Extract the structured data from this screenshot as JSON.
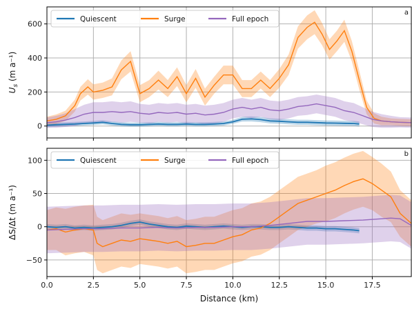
{
  "chart_data": [
    {
      "type": "line",
      "panel_letter": "a",
      "ylabel_main": "U",
      "ylabel_sub": "s",
      "ylabel_unit": " (m a⁻¹)",
      "xlim": [
        0,
        19.6
      ],
      "ylim": [
        -70,
        700
      ],
      "xticks": [
        "0.0",
        "2.5",
        "5.0",
        "7.5",
        "10.0",
        "12.5",
        "15.0",
        "17.5"
      ],
      "yticks": [
        0,
        200,
        400,
        600
      ],
      "ytick_labels": [
        "0",
        "200",
        "400",
        "600"
      ],
      "grid": true,
      "legend": "top-left",
      "series": [
        {
          "name": "Quiescent",
          "color": "#1f77b4",
          "x": [
            0,
            0.5,
            1,
            1.5,
            2,
            2.5,
            3,
            3.5,
            4,
            4.5,
            5,
            5.5,
            6,
            6.5,
            7,
            7.5,
            8,
            8.5,
            9,
            9.5,
            10,
            10.5,
            11,
            11.5,
            12,
            12.5,
            13,
            13.5,
            14,
            14.5,
            15,
            15.5,
            16,
            16.5,
            16.8
          ],
          "y": [
            5,
            8,
            10,
            12,
            15,
            18,
            22,
            15,
            10,
            8,
            8,
            10,
            12,
            10,
            10,
            12,
            10,
            10,
            12,
            15,
            25,
            40,
            42,
            38,
            30,
            28,
            25,
            22,
            22,
            20,
            18,
            17,
            16,
            15,
            12
          ],
          "band": [
            12,
            12,
            12,
            12,
            12,
            12,
            12,
            12,
            12,
            12,
            12,
            12,
            12,
            12,
            12,
            12,
            12,
            12,
            12,
            12,
            12,
            14,
            15,
            15,
            15,
            15,
            15,
            15,
            15,
            15,
            15,
            15,
            15,
            15,
            15
          ]
        },
        {
          "name": "Surge",
          "color": "#ff7f0e",
          "x": [
            0,
            0.5,
            1,
            1.5,
            1.8,
            2.2,
            2.5,
            3,
            3.5,
            4,
            4.5,
            5,
            5.5,
            6,
            6.5,
            7,
            7.5,
            8,
            8.5,
            9,
            9.5,
            10,
            10.5,
            11,
            11.5,
            12,
            12.5,
            13,
            13.5,
            14,
            14.4,
            14.8,
            15.2,
            15.6,
            16,
            16.4,
            16.8,
            17.2,
            17.6,
            18,
            18.5,
            19,
            19.6
          ],
          "y": [
            30,
            40,
            60,
            120,
            190,
            230,
            200,
            210,
            230,
            330,
            380,
            190,
            220,
            270,
            220,
            290,
            190,
            280,
            170,
            240,
            300,
            300,
            220,
            220,
            270,
            220,
            280,
            360,
            520,
            580,
            610,
            540,
            450,
            500,
            560,
            440,
            270,
            110,
            45,
            30,
            25,
            22,
            20
          ],
          "band": [
            25,
            28,
            30,
            35,
            40,
            45,
            45,
            45,
            50,
            55,
            60,
            50,
            50,
            55,
            50,
            55,
            50,
            55,
            50,
            50,
            55,
            55,
            50,
            50,
            50,
            50,
            55,
            60,
            65,
            70,
            70,
            65,
            60,
            60,
            65,
            60,
            55,
            40,
            30,
            25,
            20,
            20,
            20
          ]
        },
        {
          "name": "Full epoch",
          "color": "#9467bd",
          "x": [
            0,
            0.5,
            1,
            1.5,
            2,
            2.5,
            3,
            3.5,
            4,
            4.5,
            5,
            5.5,
            6,
            6.5,
            7,
            7.5,
            8,
            8.5,
            9,
            9.5,
            10,
            10.5,
            11,
            11.5,
            12,
            12.5,
            13,
            13.5,
            14,
            14.5,
            15,
            15.5,
            16,
            16.5,
            17,
            17.5,
            18,
            18.5,
            19,
            19.6
          ],
          "y": [
            20,
            25,
            35,
            50,
            70,
            80,
            80,
            85,
            80,
            85,
            75,
            70,
            80,
            75,
            80,
            70,
            75,
            65,
            70,
            80,
            100,
            110,
            100,
            110,
            95,
            90,
            100,
            115,
            120,
            130,
            120,
            110,
            90,
            80,
            60,
            40,
            30,
            25,
            22,
            20
          ],
          "band": [
            30,
            35,
            40,
            50,
            55,
            60,
            60,
            60,
            60,
            60,
            55,
            55,
            55,
            55,
            55,
            55,
            55,
            55,
            55,
            55,
            55,
            55,
            55,
            55,
            55,
            55,
            55,
            55,
            55,
            55,
            55,
            55,
            55,
            55,
            50,
            45,
            40,
            35,
            30,
            30
          ]
        }
      ]
    },
    {
      "type": "line",
      "panel_letter": "b",
      "ylabel": "ΔS/Δt (m a⁻¹)",
      "xlabel": "Distance (km)",
      "xlim": [
        0,
        19.6
      ],
      "ylim": [
        -75,
        118
      ],
      "xticks": [
        "0.0",
        "2.5",
        "5.0",
        "7.5",
        "10.0",
        "12.5",
        "15.0",
        "17.5"
      ],
      "yticks": [
        -50,
        0,
        50,
        100
      ],
      "ytick_labels": [
        "−50",
        "0",
        "50",
        "100"
      ],
      "grid": true,
      "legend": "top-left",
      "series": [
        {
          "name": "Quiescent",
          "color": "#1f77b4",
          "x": [
            0,
            0.5,
            1,
            1.5,
            2,
            2.5,
            3,
            3.5,
            4,
            4.5,
            5,
            5.5,
            6,
            6.5,
            7,
            7.5,
            8,
            8.5,
            9,
            9.5,
            10,
            10.5,
            11,
            11.5,
            12,
            12.5,
            13,
            13.5,
            14,
            14.5,
            15,
            15.5,
            16,
            16.5,
            16.8
          ],
          "y": [
            0,
            -1,
            0,
            -2,
            -1,
            -2,
            -1,
            0,
            2,
            5,
            7,
            4,
            2,
            0,
            -1,
            1,
            0,
            -1,
            0,
            1,
            0,
            -1,
            0,
            0,
            -1,
            -1,
            0,
            -1,
            -2,
            -2,
            -3,
            -3,
            -4,
            -5,
            -6
          ],
          "band": [
            4,
            4,
            4,
            4,
            4,
            4,
            4,
            4,
            4,
            4,
            4,
            4,
            4,
            4,
            4,
            4,
            4,
            4,
            4,
            4,
            4,
            4,
            4,
            4,
            4,
            4,
            4,
            4,
            4,
            4,
            4,
            4,
            4,
            4,
            4
          ]
        },
        {
          "name": "Surge",
          "color": "#ff7f0e",
          "x": [
            0,
            0.5,
            1,
            1.5,
            2,
            2.5,
            2.7,
            3,
            3.5,
            4,
            4.5,
            5,
            5.5,
            6,
            6.5,
            7,
            7.5,
            8,
            8.5,
            9,
            9.5,
            10,
            10.5,
            11,
            11.5,
            12,
            12.5,
            13,
            13.5,
            14,
            14.5,
            15,
            15.5,
            16,
            16.5,
            17,
            17.5,
            18,
            18.5,
            19,
            19.6
          ],
          "y": [
            -5,
            -3,
            -8,
            -5,
            -3,
            -5,
            -25,
            -30,
            -25,
            -20,
            -22,
            -18,
            -20,
            -22,
            -25,
            -22,
            -30,
            -28,
            -25,
            -25,
            -20,
            -15,
            -12,
            -5,
            -2,
            5,
            15,
            25,
            35,
            40,
            45,
            50,
            55,
            62,
            68,
            72,
            65,
            55,
            45,
            20,
            5
          ],
          "band": [
            30,
            32,
            35,
            35,
            35,
            38,
            40,
            40,
            40,
            40,
            40,
            38,
            38,
            38,
            38,
            38,
            40,
            40,
            40,
            40,
            40,
            40,
            40,
            40,
            40,
            40,
            40,
            40,
            40,
            40,
            40,
            42,
            42,
            42,
            42,
            42,
            40,
            40,
            38,
            35,
            35
          ]
        },
        {
          "name": "Full epoch",
          "color": "#9467bd",
          "x": [
            0,
            1,
            2,
            3,
            4,
            5,
            6,
            7,
            8,
            9,
            10,
            11,
            12,
            13,
            14,
            15,
            16,
            17,
            18,
            18.5,
            19,
            19.6
          ],
          "y": [
            -5,
            -4,
            -3,
            -3,
            -2,
            -2,
            -1,
            -2,
            -1,
            -1,
            0,
            0,
            2,
            5,
            8,
            8,
            9,
            10,
            12,
            13,
            12,
            2
          ],
          "band": [
            35,
            35,
            35,
            35,
            35,
            35,
            35,
            35,
            35,
            35,
            35,
            35,
            35,
            35,
            35,
            35,
            35,
            35,
            35,
            35,
            35,
            35
          ]
        }
      ]
    }
  ]
}
